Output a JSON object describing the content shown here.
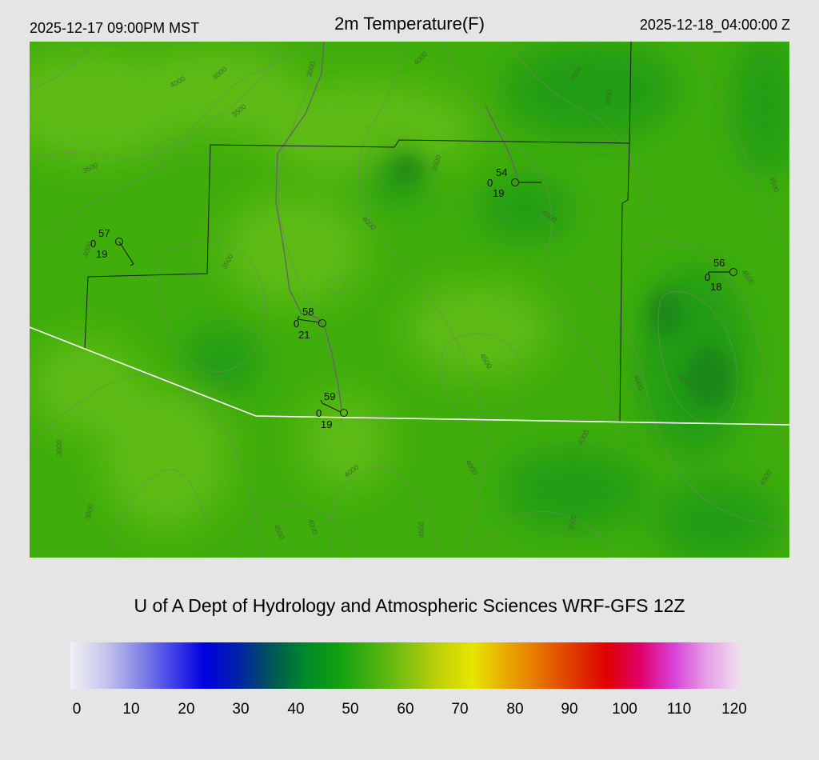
{
  "header": {
    "local_time": "2025-12-17 09:00PM MST",
    "title": "2m Temperature(F)",
    "utc_time": "2025-12-18_04:00:00 Z"
  },
  "credit": "U of A Dept of Hydrology and Atmospheric Sciences WRF-GFS 12Z",
  "colors": {
    "field_base": "#3fad0c",
    "field_light": "#63be12",
    "field_dark": "#1e9a16",
    "boundary": "#1a1a1a",
    "border": "#ffffff",
    "terrain_contour": "#6f8a5f"
  },
  "colorbar": {
    "min": 0,
    "max": 120,
    "tick_labels": [
      "0",
      "10",
      "20",
      "30",
      "40",
      "50",
      "60",
      "70",
      "80",
      "90",
      "100",
      "110",
      "120"
    ],
    "colors": [
      "#f0f0f5",
      "#c8c8ee",
      "#8a8ae8",
      "#4545e8",
      "#0000e0",
      "#0022aa",
      "#005555",
      "#00882a",
      "#10a010",
      "#45b010",
      "#80c010",
      "#c0d008",
      "#e6e600",
      "#e8aa00",
      "#e87200",
      "#e03a00",
      "#e00000",
      "#e0006a",
      "#d840d8",
      "#e6a0e6",
      "#f0e0f0"
    ]
  },
  "contour_labels": [
    "4000",
    "4000",
    "3500",
    "3000",
    "3500",
    "4000",
    "4000",
    "3500",
    "3500",
    "3500",
    "4000",
    "4500",
    "4500",
    "4500",
    "4000",
    "4000",
    "4000",
    "4000",
    "3000",
    "3000",
    "4500",
    "4000",
    "4500",
    "3000",
    "4000",
    "4500",
    "4500",
    "4000"
  ],
  "stations": [
    {
      "temp": "57",
      "left": "0",
      "bottom": "19"
    },
    {
      "temp": "54",
      "left": "0",
      "bottom": "19"
    },
    {
      "temp": "56",
      "left": "0",
      "bottom": "18"
    },
    {
      "temp": "58",
      "left": "0",
      "bottom": "21"
    },
    {
      "temp": "59",
      "left": "0",
      "bottom": "19"
    }
  ]
}
